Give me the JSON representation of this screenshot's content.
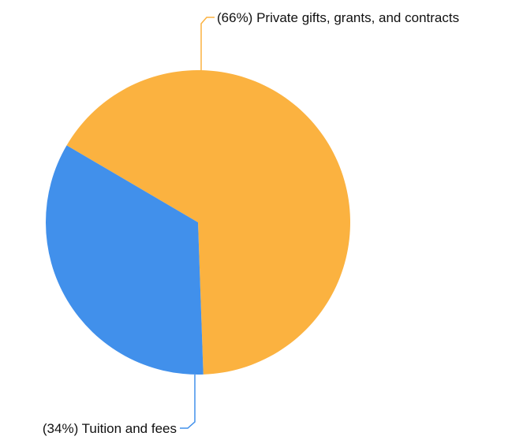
{
  "chart_data": {
    "type": "pie",
    "slices": [
      {
        "label": "(66%) Private gifts, grants, and contracts",
        "value": 66,
        "color": "#FBB240"
      },
      {
        "label": "(34%) Tuition and fees",
        "value": 34,
        "color": "#4190EB"
      }
    ]
  }
}
